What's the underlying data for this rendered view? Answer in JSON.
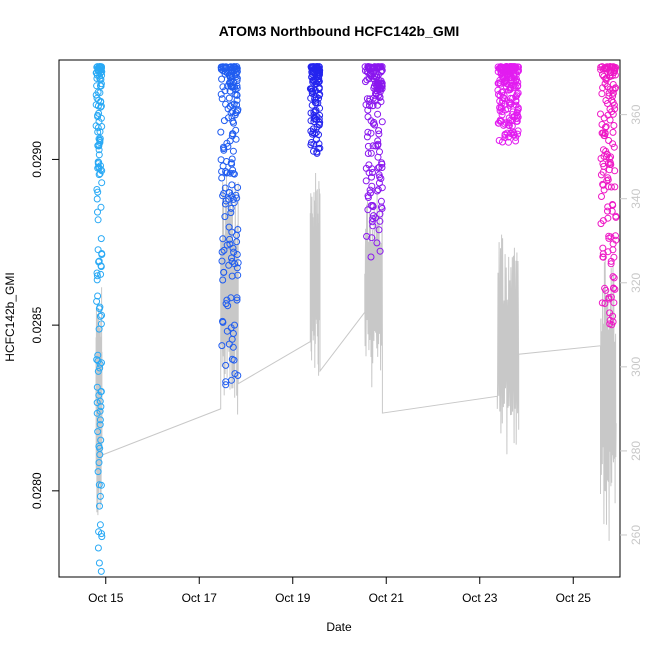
{
  "chart_data": {
    "type": "scatter",
    "title": "ATOM3 Northbound HCFC142b_GMI",
    "xlabel": "Date",
    "ylabel": "HCFC142b_GMI",
    "xlim": [
      "2016-10-14T00:00",
      "2016-10-26T00:00"
    ],
    "ylim": [
      0.02774,
      0.0293
    ],
    "x_ticks": [
      {
        "date": "2016-10-15T00:00",
        "label": "Oct 15"
      },
      {
        "date": "2016-10-17T00:00",
        "label": "Oct 17"
      },
      {
        "date": "2016-10-19T00:00",
        "label": "Oct 19"
      },
      {
        "date": "2016-10-21T00:00",
        "label": "Oct 21"
      },
      {
        "date": "2016-10-23T00:00",
        "label": "Oct 23"
      },
      {
        "date": "2016-10-25T00:00",
        "label": "Oct 25"
      }
    ],
    "y_ticks": [
      {
        "value": 0.028,
        "label": "0.0280"
      },
      {
        "value": 0.0285,
        "label": "0.0285"
      },
      {
        "value": 0.029,
        "label": "0.0290"
      }
    ],
    "secondary_axis": {
      "ylim": [
        250,
        373
      ],
      "ticks": [
        {
          "value": 260,
          "label": "260"
        },
        {
          "value": 280,
          "label": "280"
        },
        {
          "value": 300,
          "label": "300"
        },
        {
          "value": 320,
          "label": "320"
        },
        {
          "value": 340,
          "label": "340"
        },
        {
          "value": 360,
          "label": "360"
        }
      ],
      "line_color": "#c8c8c8"
    },
    "grid": false,
    "legend": "none",
    "series": [
      {
        "color": "#29a9f5",
        "flight": {
          "start": "2016-10-14T19:00",
          "end": "2016-10-14T22:00",
          "y_min": 0.02775,
          "y_max": 0.02928,
          "n": 140
        },
        "secondary_segment": {
          "start": "2016-10-14T19:00",
          "end": "2016-10-14T22:00",
          "min": 262,
          "max": 320
        }
      },
      {
        "color": "#1f5cf0",
        "flight": {
          "start": "2016-10-17T11:00",
          "end": "2016-10-17T20:00",
          "y_min": 0.02826,
          "y_max": 0.02928,
          "n": 180
        },
        "secondary_segment": {
          "start": "2016-10-17T11:00",
          "end": "2016-10-17T20:00",
          "min": 287,
          "max": 348
        }
      },
      {
        "color": "#2424ee",
        "flight": {
          "start": "2016-10-19T09:00",
          "end": "2016-10-19T14:00",
          "y_min": 0.029,
          "y_max": 0.02928,
          "n": 120
        },
        "secondary_segment": {
          "start": "2016-10-19T09:00",
          "end": "2016-10-19T14:00",
          "min": 296,
          "max": 349
        }
      },
      {
        "color": "#8a17ee",
        "flight": {
          "start": "2016-10-20T13:00",
          "end": "2016-10-20T22:00",
          "y_min": 0.0287,
          "y_max": 0.02928,
          "n": 160
        },
        "secondary_segment": {
          "start": "2016-10-20T13:00",
          "end": "2016-10-20T22:00",
          "min": 294,
          "max": 344
        }
      },
      {
        "color": "#e21cf0",
        "flight": {
          "start": "2016-10-23T09:00",
          "end": "2016-10-23T20:00",
          "y_min": 0.02905,
          "y_max": 0.02928,
          "n": 190
        },
        "secondary_segment": {
          "start": "2016-10-23T09:00",
          "end": "2016-10-23T20:00",
          "min": 276,
          "max": 337
        }
      },
      {
        "color": "#ee18c6",
        "flight": {
          "start": "2016-10-25T14:00",
          "end": "2016-10-25T22:00",
          "y_min": 0.0285,
          "y_max": 0.02928,
          "n": 150
        },
        "secondary_segment": {
          "start": "2016-10-25T14:00",
          "end": "2016-10-25T22:00",
          "min": 258,
          "max": 330
        }
      }
    ],
    "secondary_transits": [
      {
        "date": "2016-10-14T22:00",
        "value": 279
      },
      {
        "date": "2016-10-17T11:00",
        "value": 290
      },
      {
        "date": "2016-10-17T20:00",
        "value": 296
      },
      {
        "date": "2016-10-19T09:00",
        "value": 306
      },
      {
        "date": "2016-10-19T14:00",
        "value": 299
      },
      {
        "date": "2016-10-20T13:00",
        "value": 313
      },
      {
        "date": "2016-10-20T22:00",
        "value": 289
      },
      {
        "date": "2016-10-23T09:00",
        "value": 293
      },
      {
        "date": "2016-10-23T20:00",
        "value": 303
      },
      {
        "date": "2016-10-25T14:00",
        "value": 305
      }
    ]
  }
}
